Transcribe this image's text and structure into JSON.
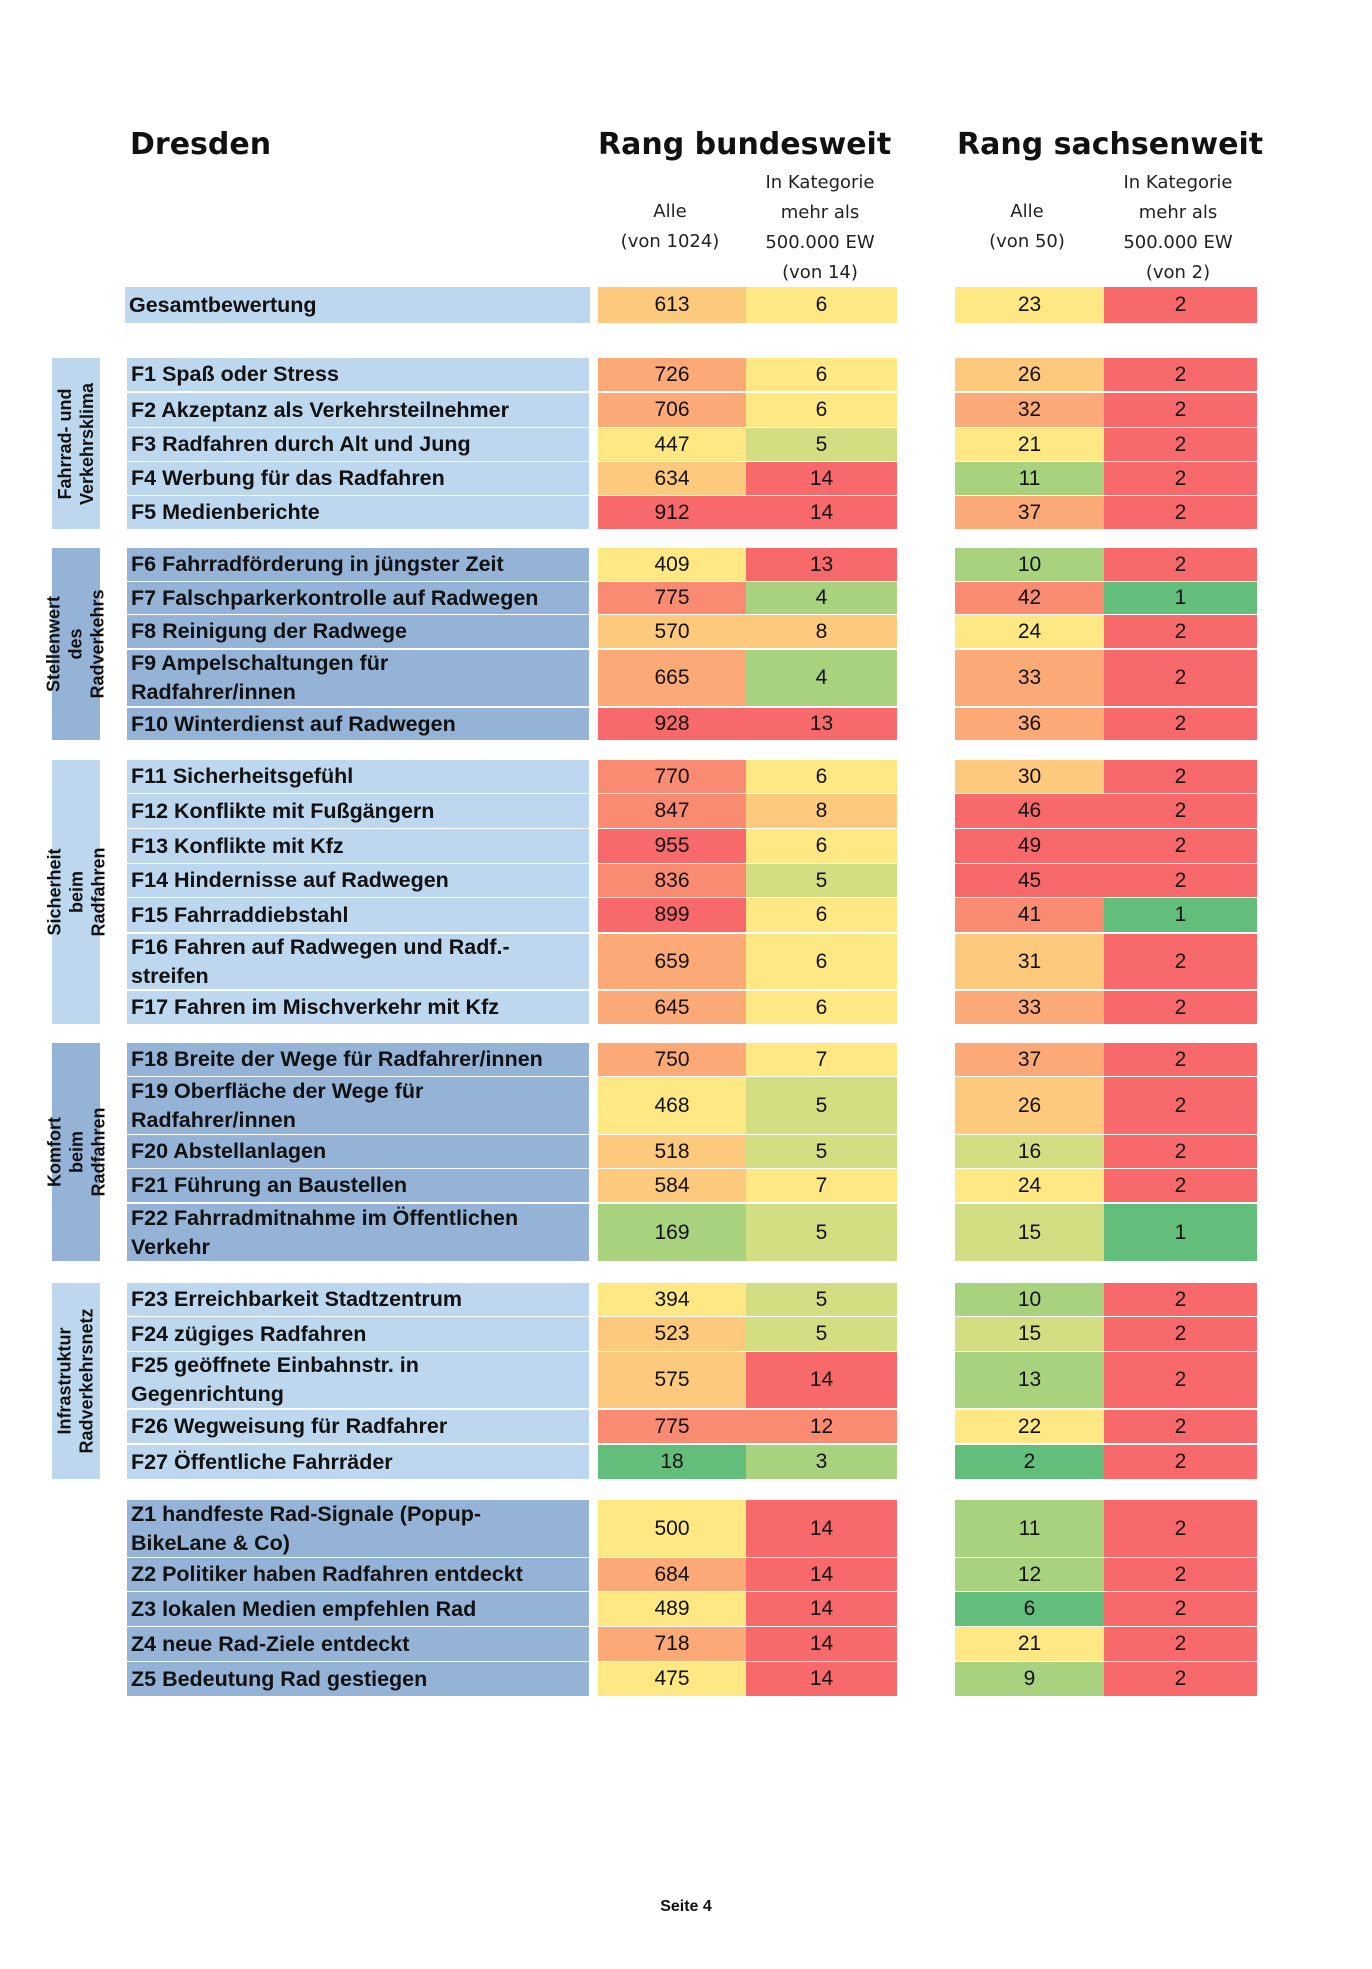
{
  "headers": {
    "city": "Dresden",
    "bundesweit": "Rang bundesweit",
    "sachsenweit": "Rang sachsenweit",
    "bw_alle": "Alle\n(von 1024)",
    "bw_kat": "In Kategorie\nmehr als\n500.000 EW\n(von 14)",
    "sw_alle": "Alle\n(von 50)",
    "sw_kat": "In Kategorie\nmehr als\n500.000 EW\n(von 2)"
  },
  "groups": [
    "Fahrrad- und\nVerkehrsklima",
    "Stellenwert des\nRadverkehrs",
    "Sicherheit beim Radfahren",
    "Komfort beim\nRadfahren",
    "Infrastruktur\nRadverkehrsnetz"
  ],
  "rows": [
    {
      "label": "Gesamtbewertung",
      "bw_all": "613",
      "bw_cat": "6",
      "sw_all": "23",
      "sw_cat": "2"
    },
    {
      "label": "F1 Spaß oder Stress",
      "bw_all": "726",
      "bw_cat": "6",
      "sw_all": "26",
      "sw_cat": "2"
    },
    {
      "label": "F2 Akzeptanz als Verkehrsteilnehmer",
      "bw_all": "706",
      "bw_cat": "6",
      "sw_all": "32",
      "sw_cat": "2"
    },
    {
      "label": "F3 Radfahren durch Alt und Jung",
      "bw_all": "447",
      "bw_cat": "5",
      "sw_all": "21",
      "sw_cat": "2"
    },
    {
      "label": "F4 Werbung für das Radfahren",
      "bw_all": "634",
      "bw_cat": "14",
      "sw_all": "11",
      "sw_cat": "2"
    },
    {
      "label": "F5 Medienberichte",
      "bw_all": "912",
      "bw_cat": "14",
      "sw_all": "37",
      "sw_cat": "2"
    },
    {
      "label": "F6 Fahrradförderung in jüngster Zeit",
      "bw_all": "409",
      "bw_cat": "13",
      "sw_all": "10",
      "sw_cat": "2"
    },
    {
      "label": "F7 Falschparkerkontrolle auf Radwegen",
      "bw_all": "775",
      "bw_cat": "4",
      "sw_all": "42",
      "sw_cat": "1"
    },
    {
      "label": "F8 Reinigung der Radwege",
      "bw_all": "570",
      "bw_cat": "8",
      "sw_all": "24",
      "sw_cat": "2"
    },
    {
      "label": "F9 Ampelschaltungen für\nRadfahrer/innen",
      "bw_all": "665",
      "bw_cat": "4",
      "sw_all": "33",
      "sw_cat": "2"
    },
    {
      "label": "F10 Winterdienst auf Radwegen",
      "bw_all": "928",
      "bw_cat": "13",
      "sw_all": "36",
      "sw_cat": "2"
    },
    {
      "label": "F11 Sicherheitsgefühl",
      "bw_all": "770",
      "bw_cat": "6",
      "sw_all": "30",
      "sw_cat": "2"
    },
    {
      "label": "F12 Konflikte mit Fußgängern",
      "bw_all": "847",
      "bw_cat": "8",
      "sw_all": "46",
      "sw_cat": "2"
    },
    {
      "label": "F13 Konflikte mit Kfz",
      "bw_all": "955",
      "bw_cat": "6",
      "sw_all": "49",
      "sw_cat": "2"
    },
    {
      "label": "F14 Hindernisse auf Radwegen",
      "bw_all": "836",
      "bw_cat": "5",
      "sw_all": "45",
      "sw_cat": "2"
    },
    {
      "label": "F15 Fahrraddiebstahl",
      "bw_all": "899",
      "bw_cat": "6",
      "sw_all": "41",
      "sw_cat": "1"
    },
    {
      "label": "F16 Fahren auf Radwegen und Radf.-\nstreifen",
      "bw_all": "659",
      "bw_cat": "6",
      "sw_all": "31",
      "sw_cat": "2"
    },
    {
      "label": "F17 Fahren im Mischverkehr mit Kfz",
      "bw_all": "645",
      "bw_cat": "6",
      "sw_all": "33",
      "sw_cat": "2"
    },
    {
      "label": "F18 Breite der Wege für Radfahrer/innen",
      "bw_all": "750",
      "bw_cat": "7",
      "sw_all": "37",
      "sw_cat": "2"
    },
    {
      "label": "F19 Oberfläche der Wege für\nRadfahrer/innen",
      "bw_all": "468",
      "bw_cat": "5",
      "sw_all": "26",
      "sw_cat": "2"
    },
    {
      "label": "F20 Abstellanlagen",
      "bw_all": "518",
      "bw_cat": "5",
      "sw_all": "16",
      "sw_cat": "2"
    },
    {
      "label": "F21 Führung an Baustellen",
      "bw_all": "584",
      "bw_cat": "7",
      "sw_all": "24",
      "sw_cat": "2"
    },
    {
      "label": "F22 Fahrradmitnahme im Öffentlichen\nVerkehr",
      "bw_all": "169",
      "bw_cat": "5",
      "sw_all": "15",
      "sw_cat": "1"
    },
    {
      "label": "F23 Erreichbarkeit Stadtzentrum",
      "bw_all": "394",
      "bw_cat": "5",
      "sw_all": "10",
      "sw_cat": "2"
    },
    {
      "label": "F24 zügiges Radfahren",
      "bw_all": "523",
      "bw_cat": "5",
      "sw_all": "15",
      "sw_cat": "2"
    },
    {
      "label": "F25 geöffnete Einbahnstr. in\nGegenrichtung",
      "bw_all": "575",
      "bw_cat": "14",
      "sw_all": "13",
      "sw_cat": "2"
    },
    {
      "label": "F26 Wegweisung für Radfahrer",
      "bw_all": "775",
      "bw_cat": "12",
      "sw_all": "22",
      "sw_cat": "2"
    },
    {
      "label": "F27 Öffentliche Fahrräder",
      "bw_all": "18",
      "bw_cat": "3",
      "sw_all": "2",
      "sw_cat": "2"
    },
    {
      "label": "Z1 handfeste Rad-Signale (Popup-\nBikeLane & Co)",
      "bw_all": "500",
      "bw_cat": "14",
      "sw_all": "11",
      "sw_cat": "2"
    },
    {
      "label": "Z2 Politiker haben Radfahren entdeckt",
      "bw_all": "684",
      "bw_cat": "14",
      "sw_all": "12",
      "sw_cat": "2"
    },
    {
      "label": "Z3 lokalen Medien empfehlen Rad",
      "bw_all": "489",
      "bw_cat": "14",
      "sw_all": "6",
      "sw_cat": "2"
    },
    {
      "label": "Z4 neue Rad-Ziele entdeckt",
      "bw_all": "718",
      "bw_cat": "14",
      "sw_all": "21",
      "sw_cat": "2"
    },
    {
      "label": "Z5 Bedeutung Rad gestiegen",
      "bw_all": "475",
      "bw_cat": "14",
      "sw_all": "9",
      "sw_cat": "2"
    }
  ],
  "colors": {
    "label_light": "#bdd7ee",
    "label_dark": "#95b3d7",
    "green": "#63be7b",
    "green_light": "#a9d27f",
    "yellow_green": "#d3de82",
    "yellow": "#fde883",
    "orange_light": "#fdc97d",
    "orange": "#fbaa77",
    "red_orange": "#f98b73",
    "red": "#f8696b"
  },
  "footer": "Seite 4"
}
